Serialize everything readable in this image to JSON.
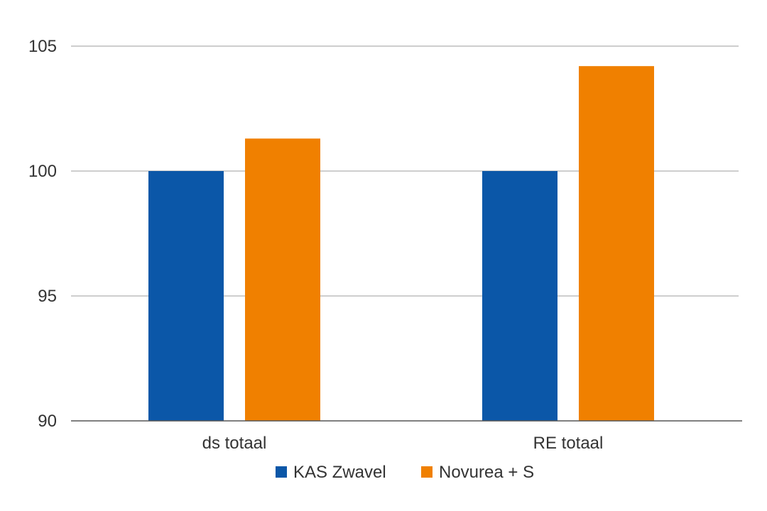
{
  "chart_data": {
    "type": "bar",
    "categories": [
      "ds totaal",
      "RE totaal"
    ],
    "series": [
      {
        "name": "KAS Zwavel",
        "values": [
          100,
          100
        ],
        "color": "#0b57a8"
      },
      {
        "name": "Novurea + S",
        "values": [
          101.3,
          104.2
        ],
        "color": "#f08000"
      }
    ],
    "ylim": [
      90,
      105
    ],
    "yticks": [
      90,
      95,
      100,
      105
    ],
    "grid": true,
    "legend": "bottom",
    "gridline_color": "#bdbdbd",
    "axis_color": "#555555"
  }
}
